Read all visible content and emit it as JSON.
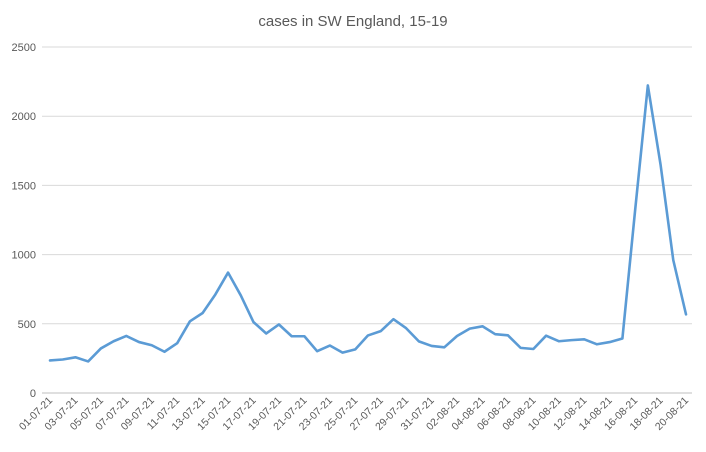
{
  "chart_data": {
    "type": "line",
    "title": "cases in SW England, 15-19",
    "xlabel": "",
    "ylabel": "",
    "ylim": [
      0,
      2500
    ],
    "yticks": [
      0,
      500,
      1000,
      1500,
      2000,
      2500
    ],
    "grid": true,
    "legend": "none",
    "line_color": "#5b9bd5",
    "x": [
      "01-07-21",
      "02-07-21",
      "03-07-21",
      "04-07-21",
      "05-07-21",
      "06-07-21",
      "07-07-21",
      "08-07-21",
      "09-07-21",
      "10-07-21",
      "11-07-21",
      "12-07-21",
      "13-07-21",
      "14-07-21",
      "15-07-21",
      "16-07-21",
      "17-07-21",
      "18-07-21",
      "19-07-21",
      "20-07-21",
      "21-07-21",
      "22-07-21",
      "23-07-21",
      "24-07-21",
      "25-07-21",
      "26-07-21",
      "27-07-21",
      "28-07-21",
      "29-07-21",
      "30-07-21",
      "31-07-21",
      "01-08-21",
      "02-08-21",
      "03-08-21",
      "04-08-21",
      "05-08-21",
      "06-08-21",
      "07-08-21",
      "08-08-21",
      "09-08-21",
      "10-08-21",
      "11-08-21",
      "12-08-21",
      "13-08-21",
      "14-08-21",
      "15-08-21",
      "16-08-21",
      "17-08-21",
      "18-08-21",
      "19-08-21",
      "20-08-21"
    ],
    "x_tick_labels": [
      "01-07-21",
      "03-07-21",
      "05-07-21",
      "07-07-21",
      "09-07-21",
      "11-07-21",
      "13-07-21",
      "15-07-21",
      "17-07-21",
      "19-07-21",
      "21-07-21",
      "23-07-21",
      "25-07-21",
      "27-07-21",
      "29-07-21",
      "31-07-21",
      "02-08-21",
      "04-08-21",
      "06-08-21",
      "08-08-21",
      "10-08-21",
      "12-08-21",
      "14-08-21",
      "16-08-21",
      "18-08-21",
      "20-08-21"
    ],
    "series": [
      {
        "values": [
          235,
          242,
          258,
          228,
          322,
          374,
          412,
          368,
          345,
          298,
          360,
          518,
          578,
          712,
          870,
          705,
          512,
          430,
          495,
          410,
          410,
          302,
          343,
          292,
          315,
          416,
          447,
          533,
          468,
          373,
          340,
          330,
          412,
          465,
          482,
          425,
          417,
          326,
          318,
          414,
          374,
          382,
          388,
          352,
          368,
          394,
          1320,
          2222,
          1650,
          960,
          568
        ]
      }
    ]
  }
}
